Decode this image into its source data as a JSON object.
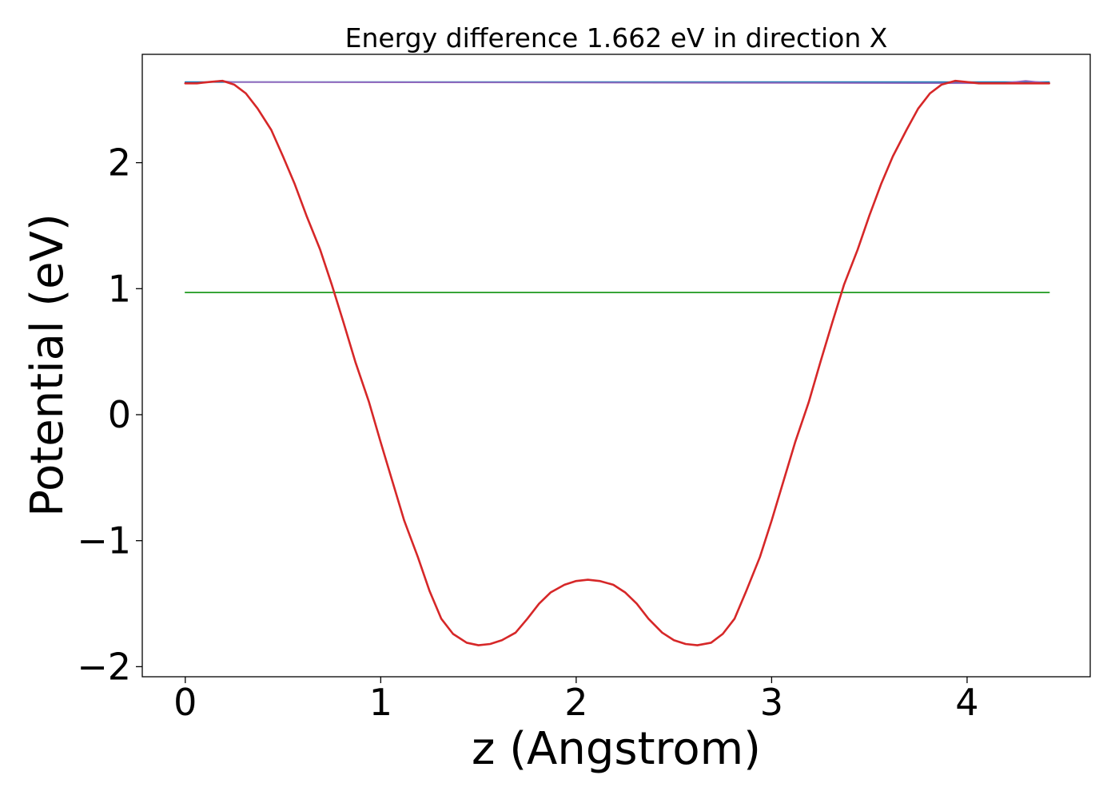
{
  "chart_data": {
    "type": "line",
    "title": "Energy difference 1.662 eV in direction X",
    "xlabel": "z (Angstrom)",
    "ylabel": "Potential (eV)",
    "xlim": [
      -0.22,
      4.63
    ],
    "ylim": [
      -2.08,
      2.86
    ],
    "xticks": [
      0,
      1,
      2,
      3,
      4
    ],
    "yticks": [
      -2,
      -1,
      0,
      1,
      2
    ],
    "xtick_labels": [
      "0",
      "1",
      "2",
      "3",
      "4"
    ],
    "ytick_labels": [
      "−2",
      "−1",
      "0",
      "1",
      "2"
    ],
    "grid": false,
    "legend": "none",
    "series": [
      {
        "color": "#1f77b4",
        "x": [
          0,
          4.42
        ],
        "y": [
          2.64,
          2.64
        ]
      },
      {
        "color": "#2ca02c",
        "x": [
          0,
          4.42
        ],
        "y": [
          0.97,
          0.97
        ]
      },
      {
        "color": "#9467bd",
        "x": [
          0,
          0.06,
          0.12,
          0.18,
          0.24,
          4.18,
          4.24,
          4.3,
          4.36,
          4.42
        ],
        "y": [
          2.63,
          2.63,
          2.64,
          2.65,
          2.64,
          2.63,
          2.64,
          2.65,
          2.64,
          2.63
        ]
      },
      {
        "color": "#d62728",
        "x": [
          0,
          0.06,
          0.12,
          0.19,
          0.25,
          0.31,
          0.37,
          0.44,
          0.5,
          0.56,
          0.62,
          0.69,
          0.75,
          0.81,
          0.87,
          0.94,
          1.0,
          1.06,
          1.12,
          1.19,
          1.25,
          1.31,
          1.37,
          1.44,
          1.5,
          1.56,
          1.62,
          1.69,
          1.75,
          1.81,
          1.87,
          1.94,
          2.0,
          2.06,
          2.12,
          2.19,
          2.25,
          2.31,
          2.37,
          2.44,
          2.5,
          2.56,
          2.62,
          2.69,
          2.75,
          2.81,
          2.87,
          2.94,
          3.0,
          3.06,
          3.12,
          3.19,
          3.25,
          3.31,
          3.37,
          3.44,
          3.5,
          3.56,
          3.62,
          3.69,
          3.75,
          3.81,
          3.87,
          3.94,
          4.0,
          4.06,
          4.12,
          4.19,
          4.25,
          4.31,
          4.37,
          4.42
        ],
        "y": [
          2.63,
          2.63,
          2.64,
          2.65,
          2.62,
          2.55,
          2.43,
          2.26,
          2.05,
          1.83,
          1.58,
          1.31,
          1.03,
          0.73,
          0.42,
          0.1,
          -0.22,
          -0.53,
          -0.84,
          -1.13,
          -1.4,
          -1.62,
          -1.74,
          -1.81,
          -1.83,
          -1.82,
          -1.79,
          -1.73,
          -1.62,
          -1.5,
          -1.41,
          -1.35,
          -1.32,
          -1.31,
          -1.32,
          -1.35,
          -1.41,
          -1.5,
          -1.62,
          -1.73,
          -1.79,
          -1.82,
          -1.83,
          -1.81,
          -1.74,
          -1.62,
          -1.4,
          -1.13,
          -0.84,
          -0.53,
          -0.22,
          0.1,
          0.42,
          0.73,
          1.03,
          1.31,
          1.58,
          1.83,
          2.05,
          2.26,
          2.43,
          2.55,
          2.62,
          2.65,
          2.64,
          2.63,
          2.63,
          2.63,
          2.63,
          2.63,
          2.63,
          2.63
        ]
      }
    ]
  }
}
